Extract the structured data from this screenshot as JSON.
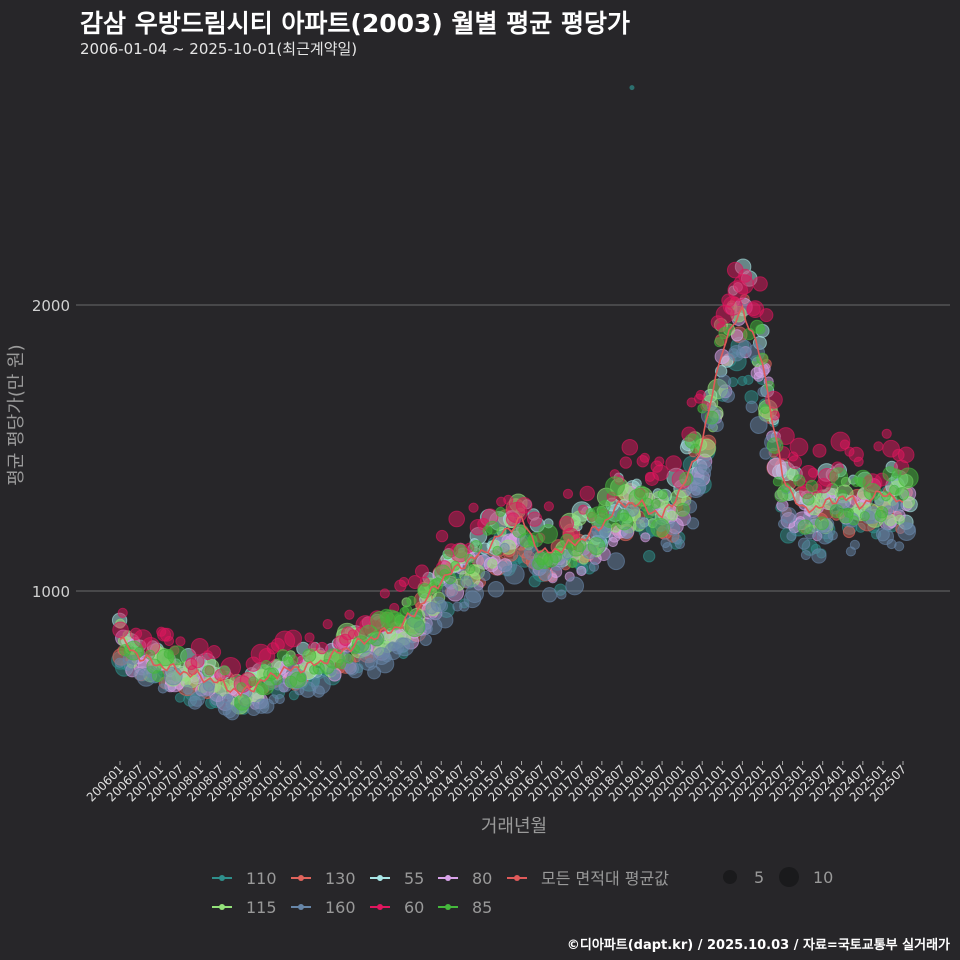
{
  "header": {
    "title": "감삼 우방드림시티 아파트(2003) 월별 평균 평당가",
    "subtitle": "2006-01-04 ~ 2025-10-01(최근계약일)"
  },
  "footer": "©디아파트(dapt.kr) / 2025.10.03 / 자료=국토교통부 실거래가",
  "chart_data": {
    "type": "scatter",
    "title": "감삼 우방드림시티 아파트(2003) 월별 평균 평당가",
    "xlabel": "거래년월",
    "ylabel": "평균 평당가(만 원)",
    "ylim": [
      380,
      2900
    ],
    "yticks": [
      1000,
      2000
    ],
    "grid": true,
    "legend_position": "bottom",
    "x_ticks": [
      "200601",
      "200607",
      "200701",
      "200707",
      "200801",
      "200807",
      "200901",
      "200907",
      "201001",
      "201007",
      "201101",
      "201107",
      "201201",
      "201207",
      "201301",
      "201307",
      "201401",
      "201407",
      "201501",
      "201507",
      "201601",
      "201607",
      "201701",
      "201707",
      "201801",
      "201807",
      "201901",
      "201907",
      "202001",
      "202007",
      "202101",
      "202107",
      "202201",
      "202207",
      "202301",
      "202307",
      "202401",
      "202407",
      "202501",
      "202507"
    ],
    "average_line": {
      "name": "모든 면적대 평균값",
      "color": "#e05a5a",
      "values": [
        830,
        770,
        740,
        720,
        700,
        680,
        640,
        680,
        720,
        730,
        750,
        790,
        820,
        850,
        880,
        950,
        1040,
        1090,
        1130,
        1200,
        1250,
        1130,
        1150,
        1180,
        1230,
        1310,
        1300,
        1260,
        1360,
        1520,
        1850,
        1990,
        1800,
        1400,
        1280,
        1300,
        1330,
        1300,
        1350,
        1300
      ]
    },
    "series": [
      {
        "name": "110",
        "color": "#2f8f8c",
        "offset": -60
      },
      {
        "name": "130",
        "color": "#e0645c",
        "offset": -20
      },
      {
        "name": "55",
        "color": "#a8e6e6",
        "offset": 20
      },
      {
        "name": "80",
        "color": "#d9a3ea",
        "offset": -30
      },
      {
        "name": "115",
        "color": "#94e27a",
        "offset": 0
      },
      {
        "name": "160",
        "color": "#6786a8",
        "offset": -80
      },
      {
        "name": "60",
        "color": "#e0165e",
        "offset": 90
      },
      {
        "name": "85",
        "color": "#45b83c",
        "offset": 10
      }
    ],
    "size_legend": [
      5,
      10
    ],
    "outlier": {
      "x": "201810",
      "y": 2760
    }
  }
}
